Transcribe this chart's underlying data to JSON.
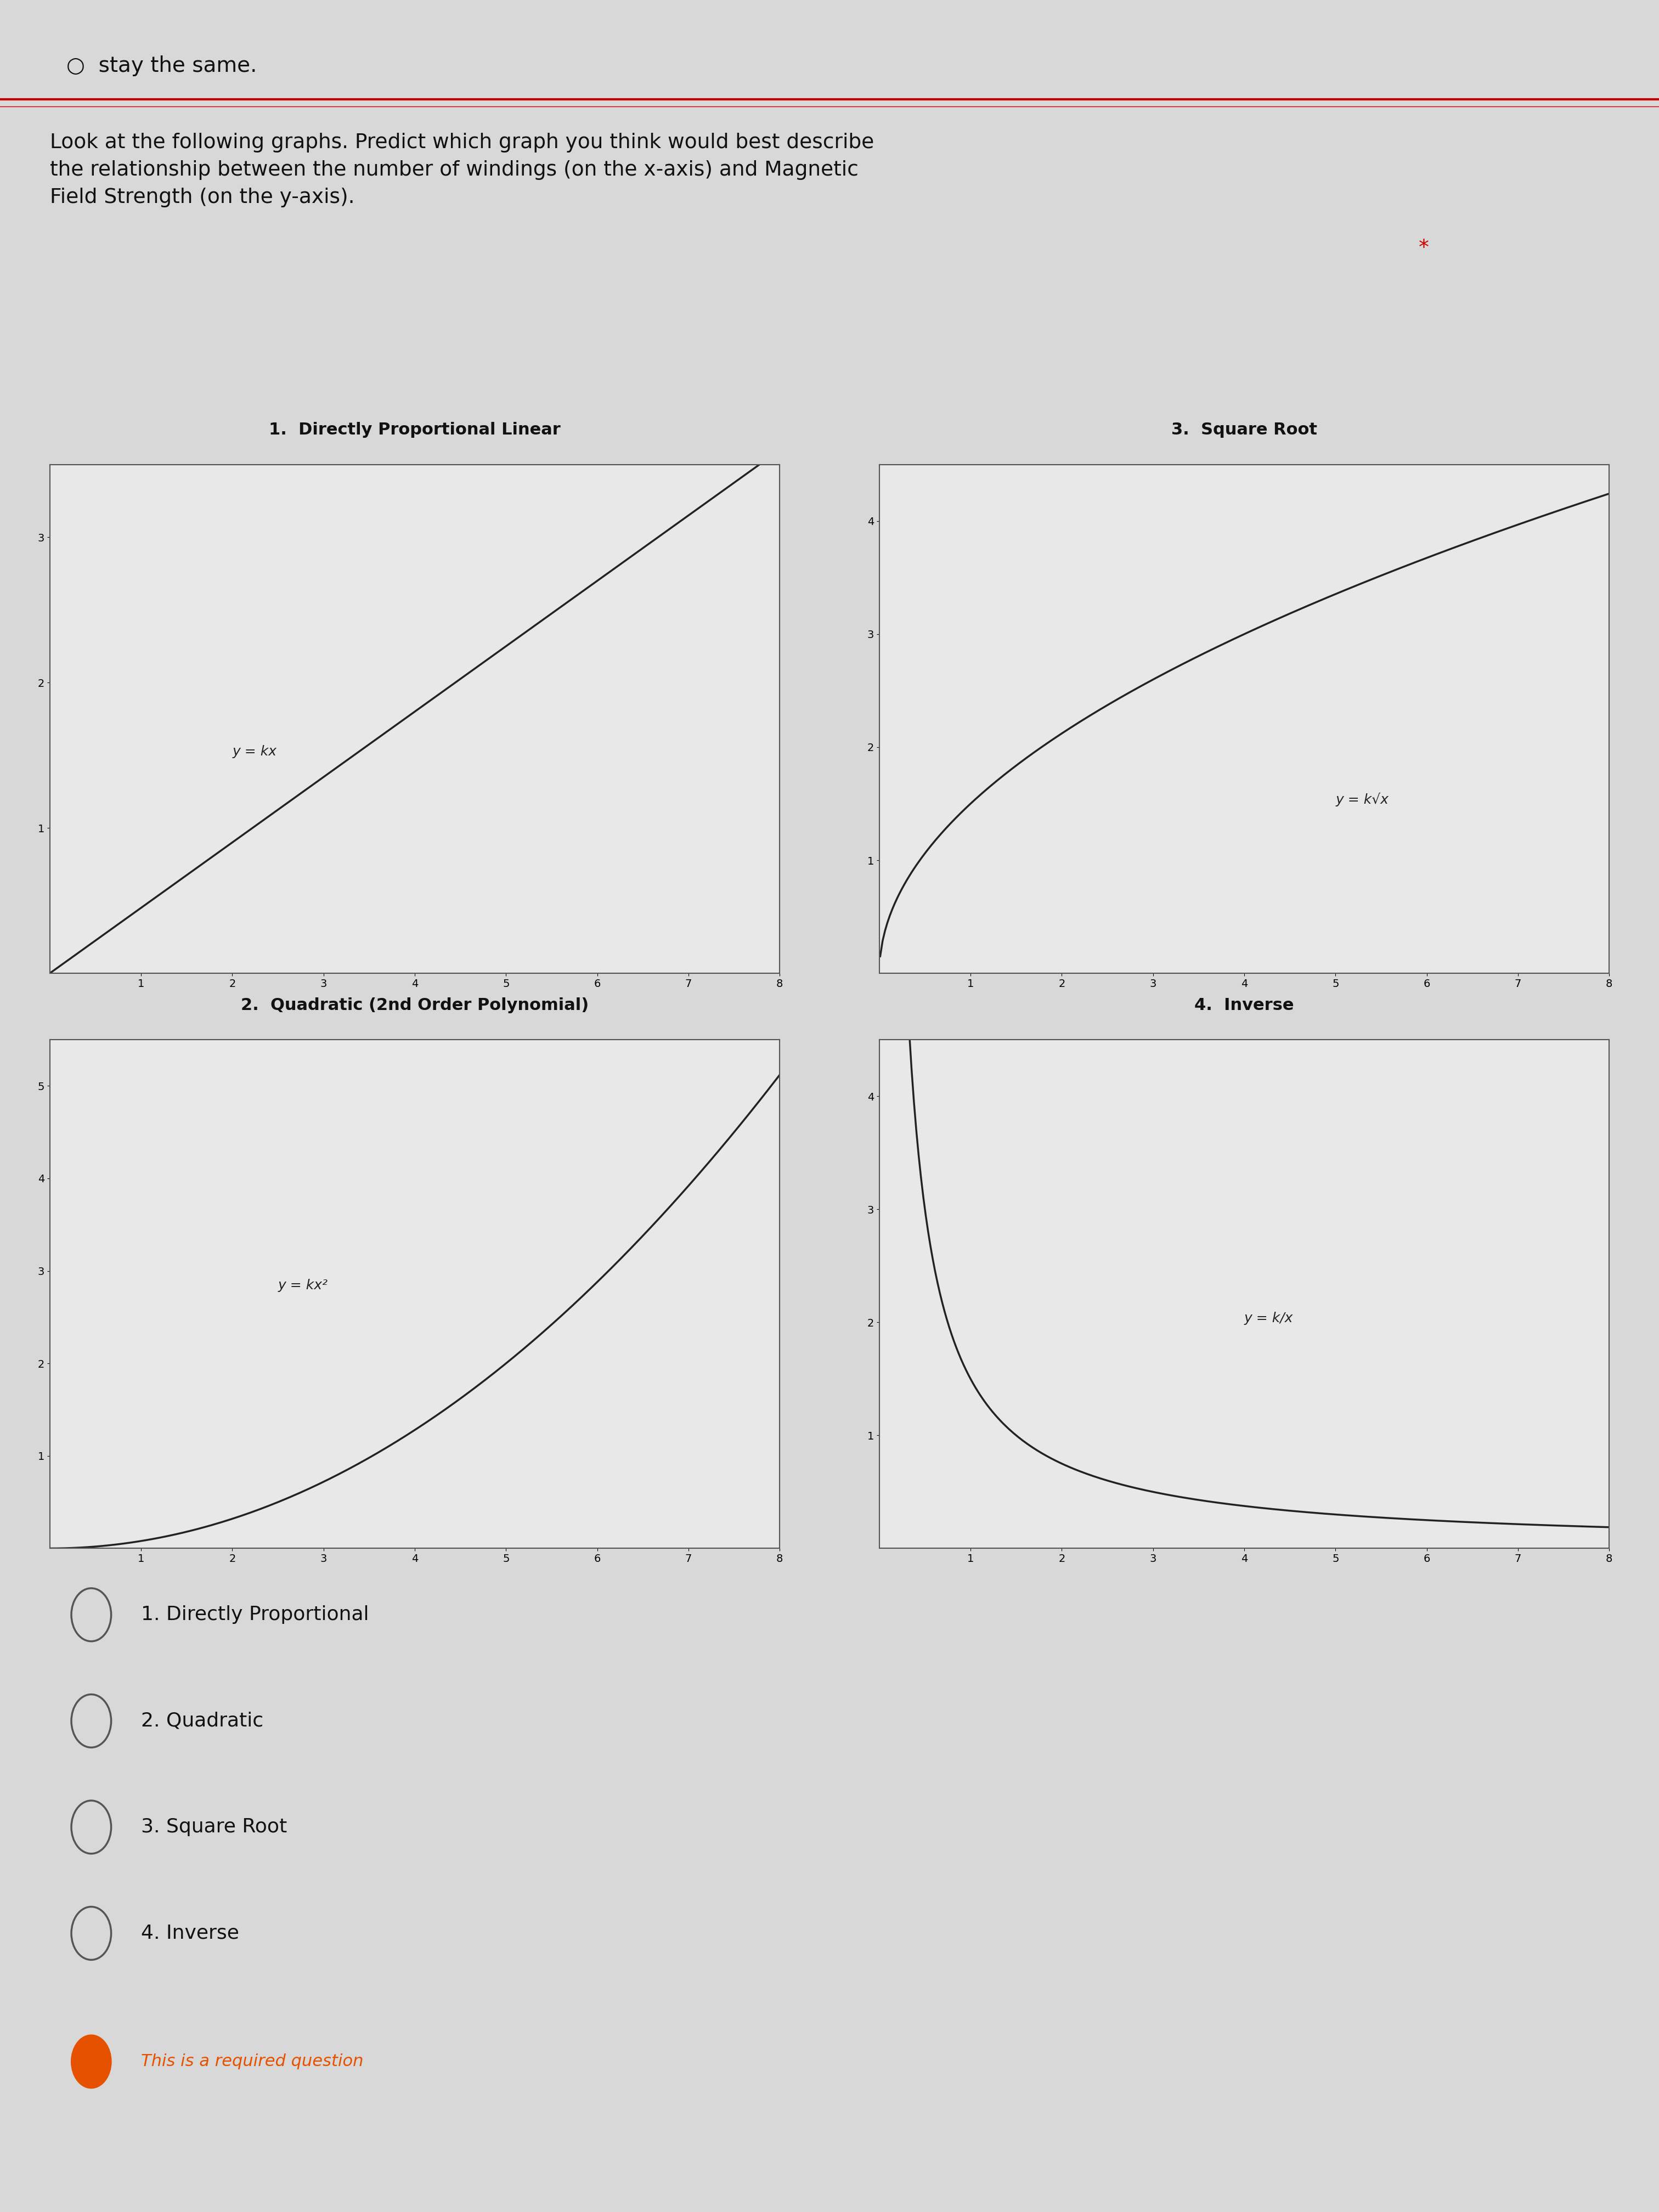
{
  "title_text": "Look at the following graphs. Predict which graph you think would best describe\nthe relationship between the number of windings (on the x-axis) and Magnetic\nField Strength (on the y-axis).",
  "title_required": "*",
  "graph_titles": [
    "1.  Directly Proportional Linear",
    "3.  Square Root",
    "2.  Quadratic (2nd Order Polynomial)",
    "4.  Inverse"
  ],
  "graph_equations": [
    "y = kx",
    "y = k√x",
    "y = kx²",
    "y = k/x"
  ],
  "radio_options": [
    "1. Directly Proportional",
    "2. Quadratic",
    "3. Square Root",
    "4. Inverse"
  ],
  "required_text": "This is a required question",
  "prev_option": "stay the same.",
  "background_color": "#d8d8d8",
  "plot_bg_color": "#e8e8e8",
  "line_color": "#222222",
  "text_color": "#111111",
  "red_star_color": "#cc0000",
  "separator_color": "#cc0000",
  "radio_circle_color": "#555555"
}
